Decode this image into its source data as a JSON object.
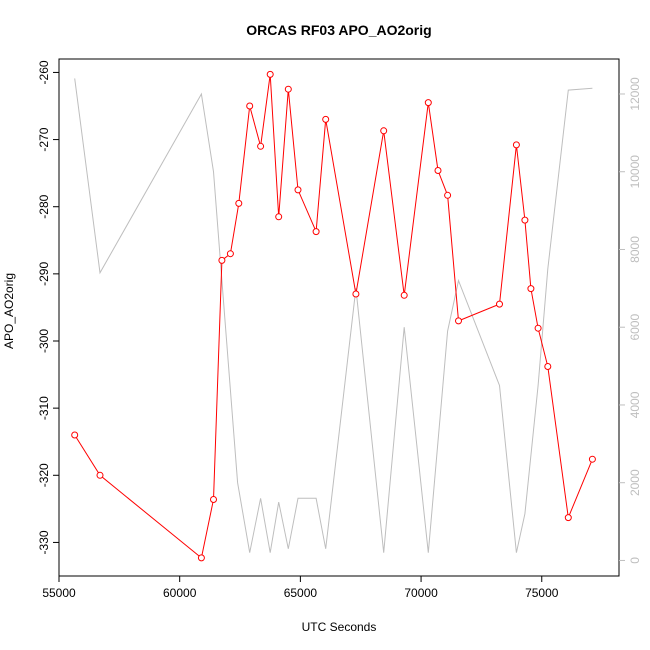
{
  "chart_data": {
    "type": "line",
    "title": "ORCAS RF03 APO_AO2orig",
    "xlabel": "UTC Seconds",
    "ylabel": "APO_AO2orig",
    "xlim": [
      55000,
      78200
    ],
    "ylim": [
      -335,
      -258
    ],
    "y2lim": [
      -400,
      12900
    ],
    "x_ticks": [
      55000,
      60000,
      65000,
      70000,
      75000
    ],
    "x_tick_labels": [
      "55000",
      "60000",
      "65000",
      "70000",
      "75000"
    ],
    "y_ticks": [
      -330,
      -320,
      -310,
      -300,
      -290,
      -280,
      -270,
      -260
    ],
    "y_tick_labels": [
      "-330",
      "-320",
      "-310",
      "-300",
      "-290",
      "-280",
      "-270",
      "-260"
    ],
    "y2_ticks": [
      0,
      2000,
      4000,
      6000,
      8000,
      10000,
      12000
    ],
    "y2_tick_labels": [
      "0",
      "2000",
      "4000",
      "6000",
      "8000",
      "10000",
      "12000"
    ],
    "grid": false,
    "legend": "none",
    "series": [
      {
        "axis": "left",
        "color": "#ff0000",
        "markers": "open-circle",
        "x": [
          55650,
          56700,
          60900,
          61400,
          61750,
          62100,
          62450,
          62900,
          63350,
          63750,
          64100,
          64500,
          64900,
          65650,
          66050,
          67300,
          68450,
          69300,
          70300,
          70700,
          71100,
          71550,
          73250,
          73950,
          74300,
          74550,
          74850,
          75250,
          76100,
          77100
        ],
        "y": [
          -314,
          -320,
          -332.3,
          -323.6,
          -288,
          -287,
          -279.5,
          -265,
          -271,
          -260.3,
          -281.5,
          -262.5,
          -277.5,
          -283.7,
          -267,
          -293,
          -268.7,
          -293.2,
          -264.5,
          -274.6,
          -278.3,
          -297,
          -294.5,
          -270.8,
          -282,
          -292.2,
          -298.1,
          -303.8,
          -326.3,
          -317.6
        ]
      },
      {
        "axis": "right",
        "color": "#bebebe",
        "markers": "none",
        "x": [
          55650,
          56700,
          60900,
          61400,
          61750,
          62400,
          62900,
          63350,
          63750,
          64100,
          64500,
          64900,
          65650,
          66050,
          67300,
          68450,
          69300,
          70300,
          71100,
          71550,
          73250,
          73950,
          74300,
          74850,
          75250,
          76100,
          77100
        ],
        "y": [
          12400,
          7400,
          12000,
          10000,
          7200,
          2000,
          200,
          1600,
          200,
          1500,
          300,
          1600,
          1600,
          300,
          7000,
          200,
          6000,
          200,
          5900,
          7200,
          4500,
          200,
          1200,
          4500,
          7500,
          12100,
          12150
        ]
      }
    ]
  }
}
